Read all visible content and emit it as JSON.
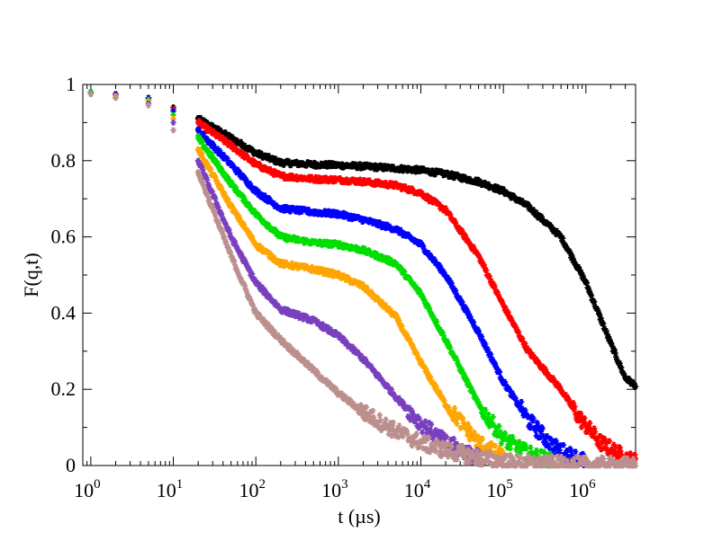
{
  "chart_data": {
    "type": "scatter",
    "title": "",
    "xlabel": "t (µs)",
    "ylabel": "F(q,t)",
    "xscale": "log",
    "xlim": [
      0.8,
      4000000
    ],
    "ylim": [
      0,
      1
    ],
    "grid": false,
    "legend": "none",
    "marker": "asterisk",
    "x_tick_labels": [
      {
        "base": "10",
        "exp": "0",
        "value": 1
      },
      {
        "base": "10",
        "exp": "1",
        "value": 10
      },
      {
        "base": "10",
        "exp": "2",
        "value": 100
      },
      {
        "base": "10",
        "exp": "3",
        "value": 1000
      },
      {
        "base": "10",
        "exp": "4",
        "value": 10000
      },
      {
        "base": "10",
        "exp": "5",
        "value": 100000
      },
      {
        "base": "10",
        "exp": "6",
        "value": 1000000
      }
    ],
    "y_tick_labels": [
      "0",
      "0.2",
      "0.4",
      "0.6",
      "0.8",
      "1"
    ],
    "y_tick_values": [
      0,
      0.2,
      0.4,
      0.6,
      0.8,
      1
    ],
    "series": [
      {
        "name": "black",
        "color": "#000000",
        "x": [
          1,
          2,
          5,
          10,
          20,
          50,
          100,
          200,
          500,
          1000,
          2000,
          5000,
          10000,
          20000,
          50000,
          100000,
          200000,
          500000,
          1000000,
          2000000,
          3000000,
          4000000
        ],
        "y": [
          0.98,
          0.975,
          0.965,
          0.94,
          0.91,
          0.86,
          0.82,
          0.795,
          0.79,
          0.788,
          0.785,
          0.78,
          0.775,
          0.765,
          0.745,
          0.72,
          0.68,
          0.6,
          0.48,
          0.32,
          0.23,
          0.21
        ]
      },
      {
        "name": "red",
        "color": "#ff0000",
        "x": [
          1,
          2,
          5,
          10,
          20,
          50,
          100,
          200,
          500,
          1000,
          2000,
          5000,
          10000,
          20000,
          50000,
          100000,
          200000,
          500000,
          800000,
          1500000,
          3000000,
          4000000
        ],
        "y": [
          0.98,
          0.975,
          0.965,
          0.935,
          0.9,
          0.84,
          0.79,
          0.76,
          0.752,
          0.75,
          0.745,
          0.735,
          0.715,
          0.67,
          0.55,
          0.42,
          0.3,
          0.2,
          0.13,
          0.06,
          0.02,
          0.01
        ]
      },
      {
        "name": "blue",
        "color": "#0000ff",
        "x": [
          1,
          2,
          5,
          10,
          20,
          50,
          100,
          200,
          500,
          1000,
          2000,
          5000,
          10000,
          20000,
          50000,
          100000,
          200000,
          400000,
          600000,
          1000000
        ],
        "y": [
          0.98,
          0.975,
          0.965,
          0.93,
          0.88,
          0.79,
          0.72,
          0.675,
          0.665,
          0.66,
          0.645,
          0.62,
          0.58,
          0.5,
          0.35,
          0.22,
          0.12,
          0.05,
          0.03,
          0.01
        ]
      },
      {
        "name": "green",
        "color": "#00dd00",
        "x": [
          1,
          2,
          5,
          10,
          20,
          50,
          100,
          200,
          500,
          1000,
          2000,
          5000,
          10000,
          20000,
          50000,
          100000,
          200000,
          400000
        ],
        "y": [
          0.98,
          0.97,
          0.96,
          0.92,
          0.86,
          0.74,
          0.66,
          0.6,
          0.585,
          0.58,
          0.565,
          0.53,
          0.45,
          0.33,
          0.16,
          0.07,
          0.03,
          0.01
        ]
      },
      {
        "name": "orange",
        "color": "#ffa500",
        "x": [
          1,
          2,
          5,
          10,
          20,
          50,
          100,
          200,
          500,
          1000,
          2000,
          5000,
          10000,
          20000,
          50000,
          100000
        ],
        "y": [
          0.975,
          0.97,
          0.955,
          0.91,
          0.83,
          0.68,
          0.58,
          0.53,
          0.515,
          0.5,
          0.47,
          0.39,
          0.27,
          0.16,
          0.06,
          0.02
        ]
      },
      {
        "name": "purple",
        "color": "#7a3fbf",
        "x": [
          1,
          2,
          5,
          10,
          20,
          50,
          100,
          200,
          500,
          1000,
          2000,
          5000,
          10000,
          20000,
          50000
        ],
        "y": [
          0.975,
          0.965,
          0.95,
          0.9,
          0.8,
          0.6,
          0.48,
          0.41,
          0.38,
          0.34,
          0.28,
          0.18,
          0.11,
          0.06,
          0.02
        ]
      },
      {
        "name": "tan",
        "color": "#bc8f8f",
        "x": [
          1,
          2,
          5,
          10,
          20,
          50,
          100,
          200,
          500,
          1000,
          2000,
          5000,
          10000,
          20000,
          50000,
          100000,
          200000,
          1000000,
          4000000
        ],
        "y": [
          0.975,
          0.965,
          0.945,
          0.88,
          0.77,
          0.55,
          0.4,
          0.33,
          0.25,
          0.19,
          0.14,
          0.09,
          0.06,
          0.04,
          0.02,
          0.01,
          0.005,
          0.002,
          0.0
        ]
      }
    ]
  }
}
